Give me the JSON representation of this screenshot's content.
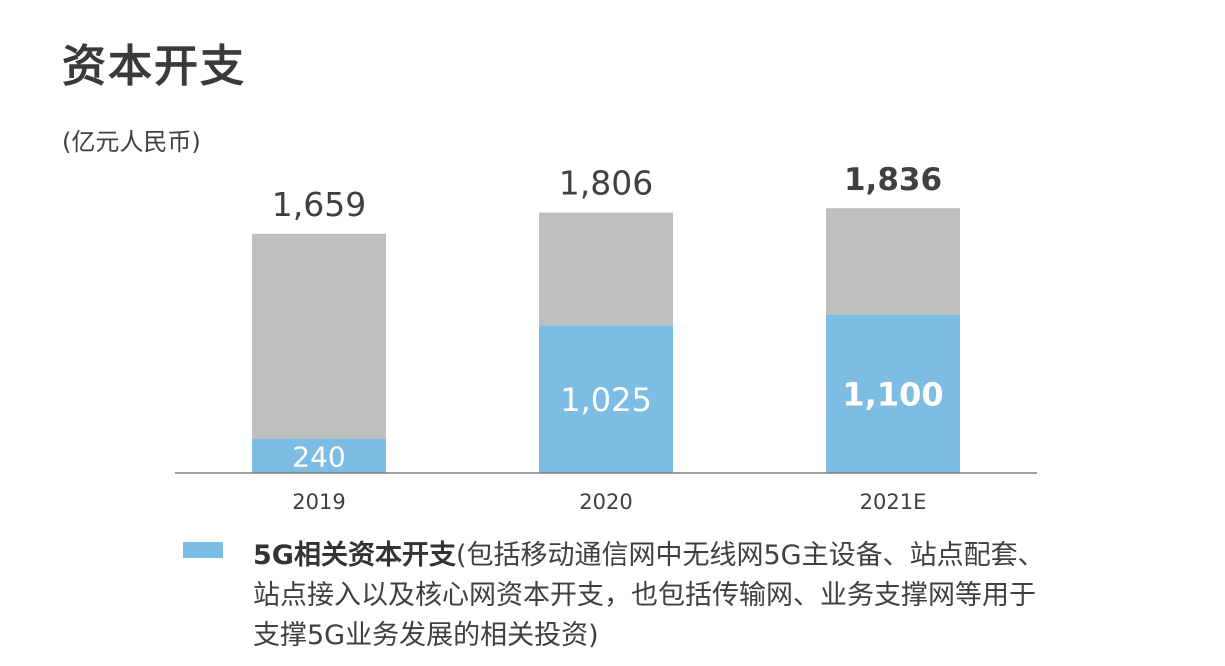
{
  "title": "资本开支",
  "unit": "(亿元人民币)",
  "colors": {
    "other": "#bfbfbf",
    "fiveg": "#7dbde3",
    "axis": "#808080",
    "total_label": "#404040",
    "inner_label": "#ffffff"
  },
  "legend": {
    "label_bold": "5G相关资本开支",
    "label_detail": "(包括移动通信网中无线网5G主设备、站点配套、站点接入以及核心网资本开支，也包括传输网、业务支撑网等用于支撑5G业务发展的相关投资)"
  },
  "chart_data": {
    "type": "bar",
    "stacked": true,
    "categories": [
      "2019",
      "2020",
      "2021E"
    ],
    "totals": [
      1659,
      1806,
      1836
    ],
    "total_labels": [
      "1,659",
      "1,806",
      "1,836"
    ],
    "series": [
      {
        "name": "5G相关资本开支",
        "values": [
          240,
          1025,
          1100
        ],
        "labels": [
          "240",
          "1,025",
          "1,100"
        ],
        "color": "#7dbde3"
      },
      {
        "values": [
          1419,
          781,
          736
        ],
        "color": "#bfbfbf"
      }
    ],
    "bold_category": "2021E",
    "ylim": [
      0,
      2100
    ],
    "grid": false
  }
}
